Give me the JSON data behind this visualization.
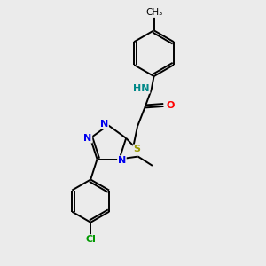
{
  "bg_color": "#ebebeb",
  "bond_color": "#000000",
  "atom_colors": {
    "N": "#0000ee",
    "O": "#ff0000",
    "S": "#999900",
    "Cl": "#009900",
    "NH": "#008888",
    "C": "#000000"
  },
  "lw": 1.4,
  "fs": 8.0
}
